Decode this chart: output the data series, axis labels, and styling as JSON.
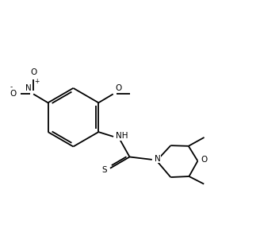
{
  "bg": "#ffffff",
  "lc": "#000000",
  "lw": 1.3,
  "fs": 7.5,
  "xlim": [
    0,
    10
  ],
  "ylim": [
    0,
    9
  ]
}
